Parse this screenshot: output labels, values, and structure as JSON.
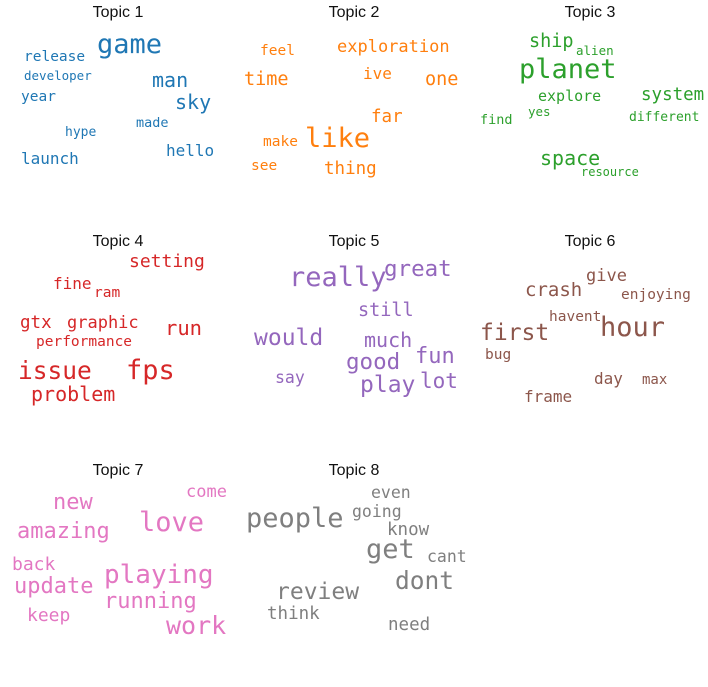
{
  "topics": [
    {
      "title": "Topic 1",
      "color": "#1f77b4",
      "words": [
        {
          "text": "game",
          "weight": 1.0
        },
        {
          "text": "man",
          "weight": 0.72
        },
        {
          "text": "sky",
          "weight": 0.72
        },
        {
          "text": "release",
          "weight": 0.5
        },
        {
          "text": "developer",
          "weight": 0.42
        },
        {
          "text": "year",
          "weight": 0.5
        },
        {
          "text": "made",
          "weight": 0.46
        },
        {
          "text": "hype",
          "weight": 0.44
        },
        {
          "text": "hello",
          "weight": 0.56
        },
        {
          "text": "launch",
          "weight": 0.56
        }
      ]
    },
    {
      "title": "Topic 2",
      "color": "#ff7f0e",
      "words": [
        {
          "text": "like",
          "weight": 1.0
        },
        {
          "text": "exploration",
          "weight": 0.6
        },
        {
          "text": "time",
          "weight": 0.66
        },
        {
          "text": "one",
          "weight": 0.66
        },
        {
          "text": "feel",
          "weight": 0.5
        },
        {
          "text": "ive",
          "weight": 0.56
        },
        {
          "text": "far",
          "weight": 0.62
        },
        {
          "text": "make",
          "weight": 0.5
        },
        {
          "text": "thing",
          "weight": 0.62
        },
        {
          "text": "see",
          "weight": 0.5
        }
      ]
    },
    {
      "title": "Topic 3",
      "color": "#2ca02c",
      "words": [
        {
          "text": "planet",
          "weight": 1.0
        },
        {
          "text": "ship",
          "weight": 0.66
        },
        {
          "text": "alien",
          "weight": 0.42
        },
        {
          "text": "system",
          "weight": 0.62
        },
        {
          "text": "explore",
          "weight": 0.52
        },
        {
          "text": "yes",
          "weight": 0.42
        },
        {
          "text": "find",
          "weight": 0.46
        },
        {
          "text": "different",
          "weight": 0.44
        },
        {
          "text": "space",
          "weight": 0.72
        },
        {
          "text": "resource",
          "weight": 0.4
        }
      ]
    },
    {
      "title": "Topic 4",
      "color": "#d62728",
      "words": [
        {
          "text": "fps",
          "weight": 1.0
        },
        {
          "text": "issue",
          "weight": 0.9
        },
        {
          "text": "setting",
          "weight": 0.64
        },
        {
          "text": "run",
          "weight": 0.74
        },
        {
          "text": "fine",
          "weight": 0.56
        },
        {
          "text": "ram",
          "weight": 0.5
        },
        {
          "text": "gtx",
          "weight": 0.62
        },
        {
          "text": "graphic",
          "weight": 0.6
        },
        {
          "text": "performance",
          "weight": 0.5
        },
        {
          "text": "problem",
          "weight": 0.72
        }
      ]
    },
    {
      "title": "Topic 5",
      "color": "#9467bd",
      "words": [
        {
          "text": "really",
          "weight": 1.0
        },
        {
          "text": "great",
          "weight": 0.82
        },
        {
          "text": "still",
          "weight": 0.66
        },
        {
          "text": "would",
          "weight": 0.84
        },
        {
          "text": "much",
          "weight": 0.72
        },
        {
          "text": "fun",
          "weight": 0.8
        },
        {
          "text": "good",
          "weight": 0.82
        },
        {
          "text": "say",
          "weight": 0.58
        },
        {
          "text": "play",
          "weight": 0.84
        },
        {
          "text": "lot",
          "weight": 0.76
        }
      ]
    },
    {
      "title": "Topic 6",
      "color": "#8c564b",
      "words": [
        {
          "text": "hour",
          "weight": 1.0
        },
        {
          "text": "first",
          "weight": 0.84
        },
        {
          "text": "crash",
          "weight": 0.68
        },
        {
          "text": "give",
          "weight": 0.6
        },
        {
          "text": "enjoying",
          "weight": 0.5
        },
        {
          "text": "havent",
          "weight": 0.5
        },
        {
          "text": "bug",
          "weight": 0.5
        },
        {
          "text": "day",
          "weight": 0.56
        },
        {
          "text": "max",
          "weight": 0.48
        },
        {
          "text": "frame",
          "weight": 0.56
        }
      ]
    },
    {
      "title": "Topic 7",
      "color": "#e377c2",
      "words": [
        {
          "text": "love",
          "weight": 1.0
        },
        {
          "text": "new",
          "weight": 0.8
        },
        {
          "text": "come",
          "weight": 0.6
        },
        {
          "text": "amazing",
          "weight": 0.8
        },
        {
          "text": "playing",
          "weight": 0.96
        },
        {
          "text": "back",
          "weight": 0.64
        },
        {
          "text": "update",
          "weight": 0.8
        },
        {
          "text": "running",
          "weight": 0.8
        },
        {
          "text": "keep",
          "weight": 0.64
        },
        {
          "text": "work",
          "weight": 0.92
        }
      ]
    },
    {
      "title": "Topic 8",
      "color": "#7f7f7f",
      "words": [
        {
          "text": "people",
          "weight": 1.0
        },
        {
          "text": "even",
          "weight": 0.58
        },
        {
          "text": "going",
          "weight": 0.58
        },
        {
          "text": "know",
          "weight": 0.62
        },
        {
          "text": "get",
          "weight": 1.0
        },
        {
          "text": "cant",
          "weight": 0.58
        },
        {
          "text": "dont",
          "weight": 0.9
        },
        {
          "text": "review",
          "weight": 0.84
        },
        {
          "text": "think",
          "weight": 0.62
        },
        {
          "text": "need",
          "weight": 0.62
        }
      ]
    }
  ]
}
